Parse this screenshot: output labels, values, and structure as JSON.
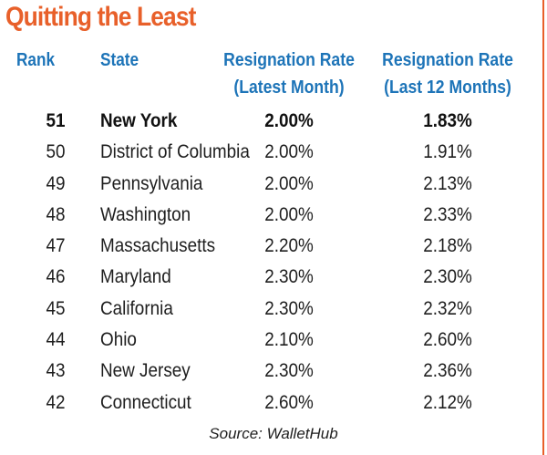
{
  "title": "Quitting the Least",
  "headers": {
    "rank": "Rank",
    "state": "State",
    "latest_line1": "Resignation Rate",
    "latest_line2": "(Latest Month)",
    "last12_line1": "Resignation Rate",
    "last12_line2": "(Last 12 Months)"
  },
  "source": "Source: WalletHub",
  "colors": {
    "title": "#e8602a",
    "header": "#1d74b8",
    "border": "#e8602a"
  },
  "chart_data": {
    "type": "table",
    "title": "Quitting the Least",
    "columns": [
      "Rank",
      "State",
      "Resignation Rate (Latest Month)",
      "Resignation Rate (Last 12 Months)"
    ],
    "rows": [
      {
        "rank": "51",
        "state": "New York",
        "latest": "2.00%",
        "last12": "1.83%"
      },
      {
        "rank": "50",
        "state": "District of Columbia",
        "latest": "2.00%",
        "last12": "1.91%"
      },
      {
        "rank": "49",
        "state": "Pennsylvania",
        "latest": "2.00%",
        "last12": "2.13%"
      },
      {
        "rank": "48",
        "state": "Washington",
        "latest": "2.00%",
        "last12": "2.33%"
      },
      {
        "rank": "47",
        "state": "Massachusetts",
        "latest": "2.20%",
        "last12": "2.18%"
      },
      {
        "rank": "46",
        "state": "Maryland",
        "latest": "2.30%",
        "last12": "2.30%"
      },
      {
        "rank": "45",
        "state": "California",
        "latest": "2.30%",
        "last12": "2.32%"
      },
      {
        "rank": "44",
        "state": "Ohio",
        "latest": "2.10%",
        "last12": "2.60%"
      },
      {
        "rank": "43",
        "state": "New Jersey",
        "latest": "2.30%",
        "last12": "2.36%"
      },
      {
        "rank": "42",
        "state": "Connecticut",
        "latest": "2.60%",
        "last12": "2.12%"
      }
    ]
  }
}
